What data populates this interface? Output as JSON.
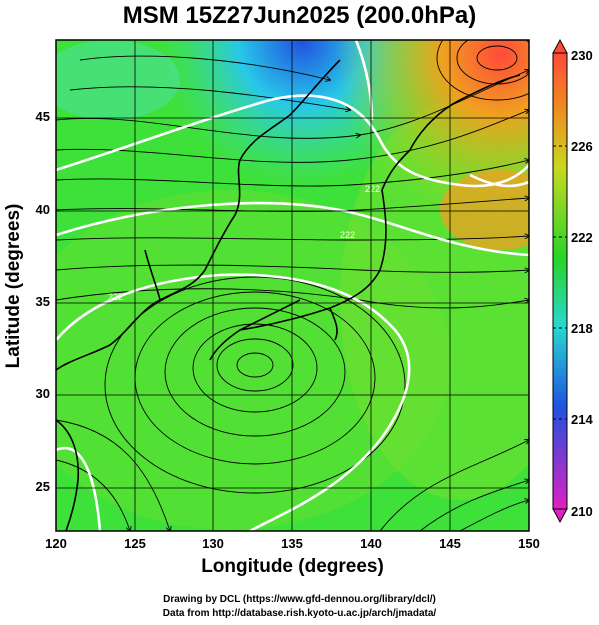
{
  "title": "MSM 15Z27Jun2025 (200.0hPa)",
  "axes": {
    "xlabel": "Longitude (degrees)",
    "ylabel": "Latitude  (degrees)",
    "xticks": [
      "120",
      "125",
      "130",
      "135",
      "140",
      "145",
      "150"
    ],
    "yticks": [
      "25",
      "30",
      "35",
      "40",
      "45"
    ]
  },
  "colorbar": {
    "ticks": [
      "230",
      "226",
      "222",
      "218",
      "214",
      "210"
    ]
  },
  "contour_labels": [
    "222",
    "222",
    "222"
  ],
  "credits": {
    "line1": "Drawing by DCL (https://www.gfd-dennou.org/library/dcl/)",
    "line2": "Data from http://database.rish.kyoto-u.ac.jp/arch/jmadata/"
  },
  "colors": {
    "warm": "#ff4a3a",
    "orange": "#f0a020",
    "yellowgreen": "#a8e020",
    "green": "#28d428",
    "cyan": "#28d8e0",
    "blue": "#2050e0",
    "magenta": "#e020c0"
  }
}
